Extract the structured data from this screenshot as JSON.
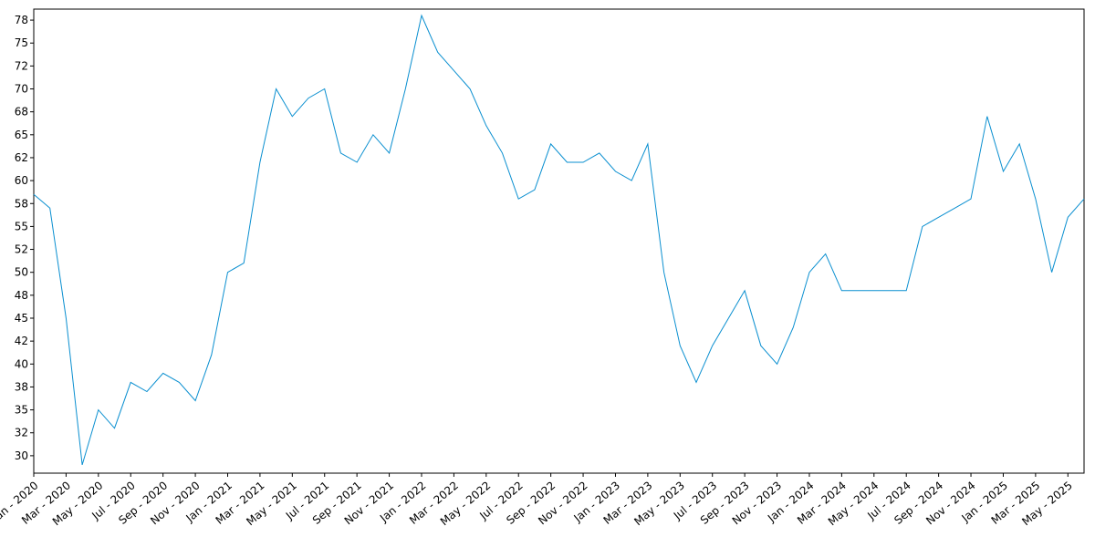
{
  "chart_data": {
    "type": "line",
    "x": [
      "2020-01",
      "2020-02",
      "2020-03",
      "2020-04",
      "2020-05",
      "2020-06",
      "2020-07",
      "2020-08",
      "2020-09",
      "2020-10",
      "2020-11",
      "2020-12",
      "2021-01",
      "2021-02",
      "2021-03",
      "2021-04",
      "2021-05",
      "2021-06",
      "2021-07",
      "2021-08",
      "2021-09",
      "2021-10",
      "2021-11",
      "2021-12",
      "2022-01",
      "2022-02",
      "2022-03",
      "2022-04",
      "2022-05",
      "2022-06",
      "2022-07",
      "2022-08",
      "2022-09",
      "2022-10",
      "2022-11",
      "2022-12",
      "2023-01",
      "2023-02",
      "2023-03",
      "2023-04",
      "2023-05",
      "2023-06",
      "2023-07",
      "2023-08",
      "2023-09",
      "2023-10",
      "2023-11",
      "2023-12",
      "2024-01",
      "2024-02",
      "2024-03",
      "2024-04",
      "2024-05",
      "2024-06",
      "2024-07",
      "2024-08",
      "2024-09",
      "2024-10",
      "2024-11",
      "2024-12",
      "2025-01",
      "2025-02",
      "2025-03",
      "2025-04",
      "2025-05",
      "2025-06"
    ],
    "series": [
      {
        "color": "#0a8fd0",
        "values": [
          58.5,
          57,
          45,
          29,
          35,
          33,
          38,
          37,
          39,
          38,
          36,
          41,
          50,
          51,
          62,
          70,
          67,
          69,
          70,
          63,
          62,
          65,
          63,
          70,
          78,
          74,
          72,
          70,
          66,
          63,
          58,
          59,
          64,
          62,
          62,
          63,
          61,
          60,
          64,
          50,
          42,
          38,
          42,
          45,
          48,
          42,
          40,
          44,
          50,
          52,
          48,
          48,
          48,
          48,
          48,
          55,
          56,
          57,
          58,
          67,
          61,
          64,
          58,
          50,
          56,
          58
        ]
      }
    ],
    "xlim": [
      "2020-01",
      "2025-06"
    ],
    "xticks": [
      {
        "value": "2020-01",
        "label": "Jan - 2020"
      },
      {
        "value": "2020-03",
        "label": "Mar - 2020"
      },
      {
        "value": "2020-05",
        "label": "May - 2020"
      },
      {
        "value": "2020-07",
        "label": "Jul - 2020"
      },
      {
        "value": "2020-09",
        "label": "Sep - 2020"
      },
      {
        "value": "2020-11",
        "label": "Nov - 2020"
      },
      {
        "value": "2021-01",
        "label": "Jan - 2021"
      },
      {
        "value": "2021-03",
        "label": "Mar - 2021"
      },
      {
        "value": "2021-05",
        "label": "May - 2021"
      },
      {
        "value": "2021-07",
        "label": "Jul - 2021"
      },
      {
        "value": "2021-09",
        "label": "Sep - 2021"
      },
      {
        "value": "2021-11",
        "label": "Nov - 2021"
      },
      {
        "value": "2022-01",
        "label": "Jan - 2022"
      },
      {
        "value": "2022-03",
        "label": "Mar - 2022"
      },
      {
        "value": "2022-05",
        "label": "May - 2022"
      },
      {
        "value": "2022-07",
        "label": "Jul - 2022"
      },
      {
        "value": "2022-09",
        "label": "Sep - 2022"
      },
      {
        "value": "2022-11",
        "label": "Nov - 2022"
      },
      {
        "value": "2023-01",
        "label": "Jan - 2023"
      },
      {
        "value": "2023-03",
        "label": "Mar - 2023"
      },
      {
        "value": "2023-05",
        "label": "May - 2023"
      },
      {
        "value": "2023-07",
        "label": "Jul - 2023"
      },
      {
        "value": "2023-09",
        "label": "Sep - 2023"
      },
      {
        "value": "2023-11",
        "label": "Nov - 2023"
      },
      {
        "value": "2024-01",
        "label": "Jan - 2024"
      },
      {
        "value": "2024-03",
        "label": "Mar - 2024"
      },
      {
        "value": "2024-05",
        "label": "May - 2024"
      },
      {
        "value": "2024-07",
        "label": "Jul - 2024"
      },
      {
        "value": "2024-09",
        "label": "Sep - 2024"
      },
      {
        "value": "2024-11",
        "label": "Nov - 2024"
      },
      {
        "value": "2025-01",
        "label": "Jan - 2025"
      },
      {
        "value": "2025-03",
        "label": "Mar - 2025"
      },
      {
        "value": "2025-05",
        "label": "May - 2025"
      }
    ],
    "ylim": [
      28.1,
      78.7
    ],
    "yticks": [
      30,
      {
        "value": 32.5,
        "label": "32"
      },
      35,
      {
        "value": 37.5,
        "label": "38"
      },
      40,
      {
        "value": 42.5,
        "label": "42"
      },
      45,
      {
        "value": 47.5,
        "label": "48"
      },
      50,
      {
        "value": 52.5,
        "label": "52"
      },
      55,
      {
        "value": 57.5,
        "label": "58"
      },
      60,
      {
        "value": 62.5,
        "label": "62"
      },
      65,
      {
        "value": 67.5,
        "label": "68"
      },
      70,
      {
        "value": 72.5,
        "label": "72"
      },
      75,
      {
        "value": 77.5,
        "label": "78"
      }
    ],
    "grid": false
  }
}
